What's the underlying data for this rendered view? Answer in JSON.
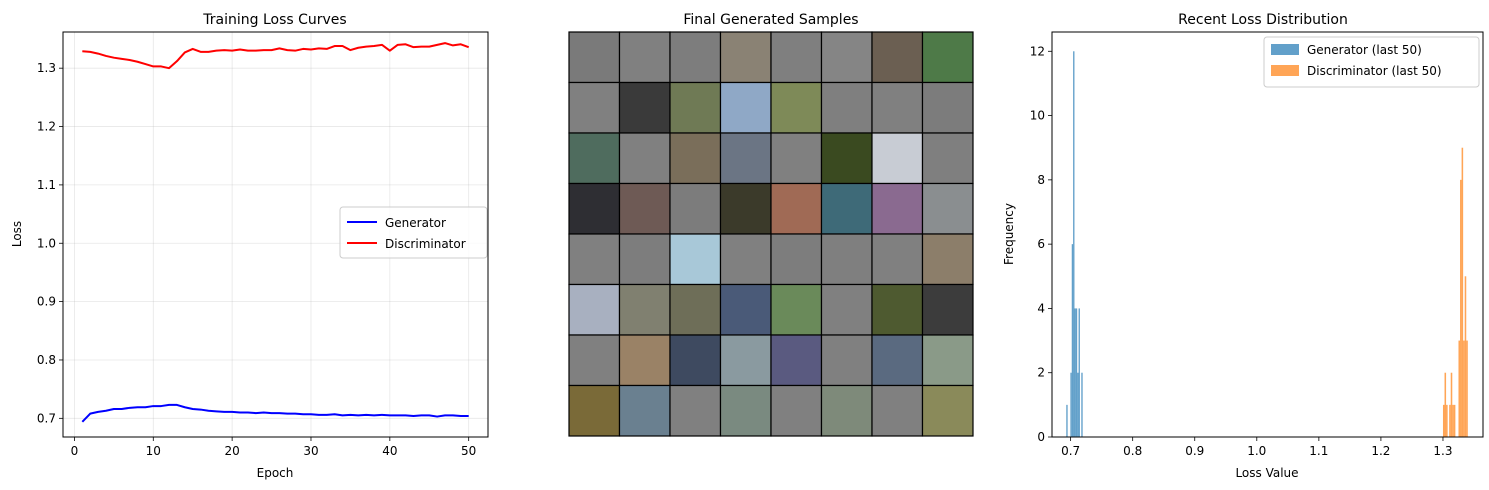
{
  "chart_data": [
    {
      "type": "line",
      "title": "Training Loss Curves",
      "xlabel": "Epoch",
      "ylabel": "Loss",
      "xlim": [
        -1.45,
        52.45
      ],
      "ylim": [
        0.668,
        1.362
      ],
      "xticks": [
        0,
        10,
        20,
        30,
        40,
        50
      ],
      "yticks": [
        0.7,
        0.8,
        0.9,
        1.0,
        1.1,
        1.2,
        1.3
      ],
      "grid": true,
      "legend": "center-right",
      "x": [
        1,
        2,
        3,
        4,
        5,
        6,
        7,
        8,
        9,
        10,
        11,
        12,
        13,
        14,
        15,
        16,
        17,
        18,
        19,
        20,
        21,
        22,
        23,
        24,
        25,
        26,
        27,
        28,
        29,
        30,
        31,
        32,
        33,
        34,
        35,
        36,
        37,
        38,
        39,
        40,
        41,
        42,
        43,
        44,
        45,
        46,
        47,
        48,
        49,
        50
      ],
      "series": [
        {
          "name": "Generator",
          "color": "#0000ff",
          "values": [
            0.694,
            0.708,
            0.711,
            0.713,
            0.716,
            0.716,
            0.718,
            0.719,
            0.719,
            0.721,
            0.721,
            0.723,
            0.723,
            0.719,
            0.716,
            0.715,
            0.713,
            0.712,
            0.711,
            0.711,
            0.71,
            0.71,
            0.709,
            0.71,
            0.709,
            0.709,
            0.708,
            0.708,
            0.707,
            0.707,
            0.706,
            0.706,
            0.707,
            0.705,
            0.706,
            0.705,
            0.706,
            0.705,
            0.706,
            0.705,
            0.705,
            0.705,
            0.704,
            0.705,
            0.705,
            0.703,
            0.705,
            0.705,
            0.704,
            0.704
          ]
        },
        {
          "name": "Discriminator",
          "color": "#ff0000",
          "values": [
            1.329,
            1.328,
            1.325,
            1.321,
            1.318,
            1.316,
            1.314,
            1.311,
            1.307,
            1.303,
            1.303,
            1.3,
            1.312,
            1.327,
            1.333,
            1.328,
            1.328,
            1.33,
            1.331,
            1.33,
            1.332,
            1.33,
            1.33,
            1.331,
            1.331,
            1.334,
            1.331,
            1.33,
            1.333,
            1.332,
            1.334,
            1.333,
            1.338,
            1.338,
            1.331,
            1.335,
            1.337,
            1.338,
            1.34,
            1.33,
            1.34,
            1.341,
            1.336,
            1.337,
            1.337,
            1.34,
            1.343,
            1.339,
            1.341,
            1.336
          ]
        }
      ]
    },
    {
      "type": "image-grid",
      "title": "Final Generated Samples",
      "rows": 8,
      "cols": 8,
      "tile_palettes": [
        [
          "#7a7a7a",
          "#808080",
          "#7d7d7d",
          "#8a8274",
          "#7f7f7f",
          "#858585",
          "#6b5f52",
          "#4e7a48",
          "#808080",
          "#3a3a3a",
          "#6f7a55",
          "#8fa8c6",
          "#7e8a58",
          "#7f7f7f",
          "#808080",
          "#7c7c7c",
          "#4f6c5e",
          "#808080",
          "#7a6e5a",
          "#6b7584",
          "#808080",
          "#3a4a20",
          "#c8ccd4",
          "#7f7f7f",
          "#2e2e33",
          "#6e5a55",
          "#7c7c7c",
          "#3b3a2a",
          "#a06a55",
          "#3e6a78",
          "#8a6a90",
          "#8a8e90",
          "#808080",
          "#7d7d7d",
          "#a8c8d8",
          "#808080",
          "#7d7d7d",
          "#7f7f7f",
          "#808080",
          "#8c7e6a",
          "#a8b0c0",
          "#808070",
          "#6e6e58",
          "#4a5a78",
          "#6a8a5a",
          "#808080",
          "#4e5a30",
          "#3c3c3c",
          "#808080",
          "#9a8266",
          "#3e4a60",
          "#8a9aa0",
          "#5a5a80",
          "#808080",
          "#5a6a80",
          "#8a9a88",
          "#7a6a38",
          "#6a8090",
          "#808080",
          "#7a8a80",
          "#808080",
          "#7e8a7a",
          "#808080",
          "#8a8a5a"
        ]
      ]
    },
    {
      "type": "histogram",
      "title": "Recent Loss Distribution",
      "xlabel": "Loss Value",
      "ylabel": "Frequency",
      "xlim": [
        0.67,
        1.3645
      ],
      "ylim": [
        0,
        12.6
      ],
      "xticks": [
        0.7,
        0.8,
        0.9,
        1.0,
        1.1,
        1.2,
        1.3
      ],
      "yticks": [
        0,
        2,
        4,
        6,
        8,
        10,
        12
      ],
      "legend": "top-right",
      "series": [
        {
          "name": "Generator (last 50)",
          "color": "#1f77b4",
          "alpha": 0.7,
          "bins": [
            [
              0.693,
              0.6952,
              1
            ],
            [
              0.6996,
              0.7018,
              2
            ],
            [
              0.7018,
              0.704,
              6
            ],
            [
              0.704,
              0.7062,
              12
            ],
            [
              0.7062,
              0.7084,
              4
            ],
            [
              0.7084,
              0.7106,
              4
            ],
            [
              0.7106,
              0.7128,
              2
            ],
            [
              0.7128,
              0.715,
              4
            ],
            [
              0.7172,
              0.7194,
              2
            ]
          ]
        },
        {
          "name": "Discriminator (last 50)",
          "color": "#ff7f0e",
          "alpha": 0.7,
          "bins": [
            [
              1.3,
              1.3025,
              1
            ],
            [
              1.3025,
              1.305,
              2
            ],
            [
              1.305,
              1.3075,
              1
            ],
            [
              1.31,
              1.3125,
              1
            ],
            [
              1.3125,
              1.315,
              2
            ],
            [
              1.315,
              1.3175,
              1
            ],
            [
              1.3175,
              1.32,
              1
            ],
            [
              1.325,
              1.3275,
              3
            ],
            [
              1.3275,
              1.33,
              8
            ],
            [
              1.33,
              1.3325,
              9
            ],
            [
              1.3325,
              1.335,
              3
            ],
            [
              1.335,
              1.3375,
              5
            ],
            [
              1.3375,
              1.34,
              3
            ]
          ]
        }
      ]
    }
  ]
}
